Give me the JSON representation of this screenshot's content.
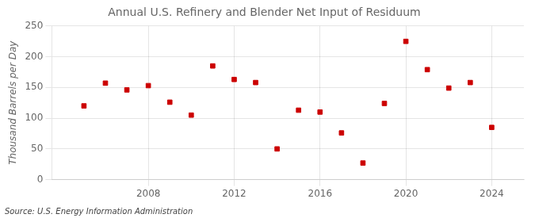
{
  "chart_data": {
    "type": "scatter",
    "title": "Annual U.S. Refinery and Blender Net Input of Residuum",
    "ylabel": "Thousand Barrels per Day",
    "annotations": [
      "Source: U.S. Energy Information Administration"
    ],
    "x": [
      2005,
      2006,
      2007,
      2008,
      2009,
      2010,
      2011,
      2012,
      2013,
      2014,
      2015,
      2016,
      2017,
      2018,
      2019,
      2020,
      2021,
      2022,
      2023,
      2024
    ],
    "values": [
      120,
      157,
      146,
      153,
      126,
      105,
      185,
      163,
      158,
      50,
      113,
      110,
      76,
      27,
      124,
      225,
      179,
      149,
      158,
      85
    ],
    "color": "#cc0000",
    "marker": "square",
    "xlim": [
      2003.5,
      2025.5
    ],
    "xticks": [
      2008,
      2012,
      2016,
      2020,
      2024
    ],
    "ylim": [
      0,
      250
    ],
    "yticks": [
      0,
      50,
      100,
      150,
      200,
      250
    ],
    "grid": true
  }
}
